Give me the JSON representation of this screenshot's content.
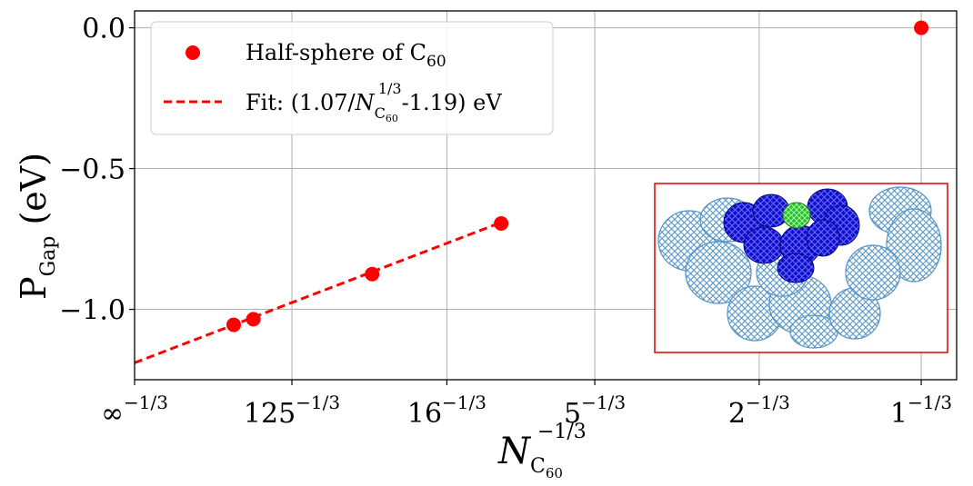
{
  "chart_data": {
    "type": "scatter",
    "xlabel": {
      "base": "N",
      "sub": "C",
      "subsub": "60",
      "sup": "−1/3"
    },
    "ylabel": {
      "base": "P",
      "sub": "Gap",
      "unit": " (eV)"
    },
    "x_ticks": [
      {
        "base": "∞",
        "exp": "−1/3",
        "value": 0
      },
      {
        "base": "125",
        "exp": "−1/3",
        "value": 0.2
      },
      {
        "base": "16",
        "exp": "−1/3",
        "value": 0.397
      },
      {
        "base": "5",
        "exp": "−1/3",
        "value": 0.585
      },
      {
        "base": "2",
        "exp": "−1/3",
        "value": 0.794
      },
      {
        "base": "1",
        "exp": "−1/3",
        "value": 1.0
      }
    ],
    "y_ticks": [
      {
        "label": "0.0",
        "value": 0.0
      },
      {
        "label": "−0.5",
        "value": -0.5
      },
      {
        "label": "−1.0",
        "value": -1.0
      }
    ],
    "xlim": [
      0,
      1.045
    ],
    "ylim": [
      -1.25,
      0.06
    ],
    "grid": true,
    "series": [
      {
        "name": "Half-sphere of C60",
        "legend": {
          "base": "Half-sphere of C",
          "sub": "60"
        },
        "color": "#ff0000",
        "x": [
          0.126,
          0.151,
          0.302,
          0.466,
          1.0
        ],
        "y": [
          -1.055,
          -1.035,
          -0.875,
          -0.695,
          0.0
        ]
      },
      {
        "name": "Fit",
        "legend": {
          "pre": "Fit: (1.07/",
          "N": "N",
          "sub": "C",
          "subsub": "60",
          "sup": "1/3",
          "post": "-1.19) eV"
        },
        "color": "#ff0000",
        "style": "dashed",
        "slope": 1.07,
        "intercept": -1.19,
        "x_range": [
          0,
          0.466
        ]
      }
    ],
    "legend_position": "top-left",
    "inset": {
      "description": "fullerene",
      "border_color": "#e00000"
    }
  }
}
